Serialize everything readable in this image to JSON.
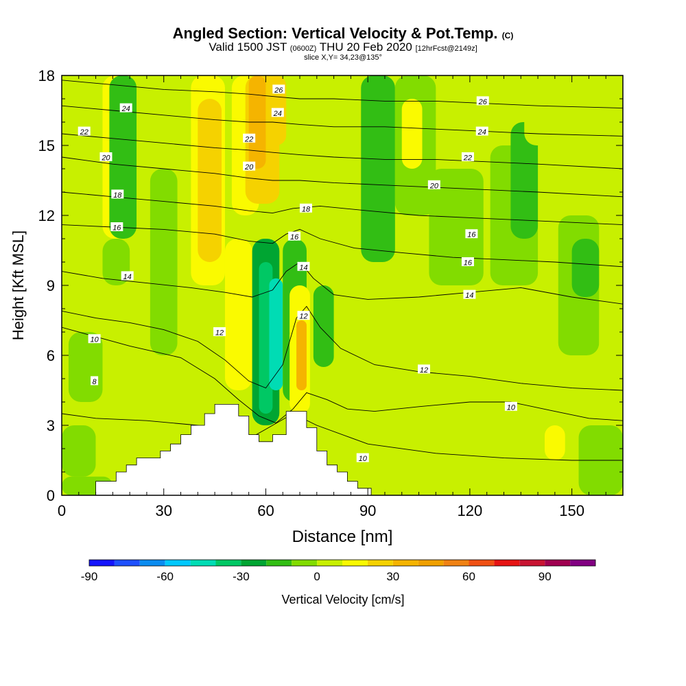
{
  "header": {
    "title": "Angled Section: Vertical Velocity & Pot.Temp.",
    "title_tag": "(C)",
    "valid_prefix": "Valid 1500 JST",
    "valid_utc": "(0600Z)",
    "valid_date": "THU 20 Feb 2020",
    "forecast": "[12hrFcst@2149z]",
    "slice": "slice X,Y= 34,23@135°"
  },
  "chart_data": {
    "type": "heatmap",
    "title": "Angled Section: Vertical Velocity & Pot.Temp.",
    "xlabel": "Distance [nm]",
    "ylabel": "Height [Kft MSL]",
    "xlim": [
      0,
      165
    ],
    "ylim": [
      0,
      18
    ],
    "x_ticks": [
      0,
      30,
      60,
      90,
      120,
      150
    ],
    "y_ticks": [
      0,
      3,
      6,
      9,
      12,
      15,
      18
    ],
    "colorbar": {
      "label": "Vertical Velocity [cm/s]",
      "min": -90,
      "max": 110,
      "step": 10,
      "tick_labels": [
        -90,
        -60,
        -30,
        0,
        30,
        60,
        90
      ],
      "colors": [
        "#1414ff",
        "#1e50ff",
        "#0a8cf0",
        "#00c8ff",
        "#00dcb4",
        "#00c864",
        "#00a532",
        "#32be14",
        "#82dc00",
        "#c8f000",
        "#fafa00",
        "#f5d200",
        "#f5b400",
        "#f0a000",
        "#f08214",
        "#f05014",
        "#e61414",
        "#c81432",
        "#a00050",
        "#820082"
      ]
    },
    "velocity_cells": [
      {
        "x": [
          0,
          15
        ],
        "y": [
          0,
          0.8
        ],
        "w": -8
      },
      {
        "x": [
          0,
          10
        ],
        "y": [
          0.8,
          3
        ],
        "w": -5
      },
      {
        "x": [
          10,
          28
        ],
        "y": [
          0.8,
          4.5
        ],
        "w": 3
      },
      {
        "x": [
          0,
          12
        ],
        "y": [
          3,
          9
        ],
        "w": 4
      },
      {
        "x": [
          2,
          12
        ],
        "y": [
          4,
          7
        ],
        "w": -6
      },
      {
        "x": [
          0,
          12
        ],
        "y": [
          9,
          18
        ],
        "w": 5
      },
      {
        "x": [
          12,
          22
        ],
        "y": [
          11,
          18
        ],
        "w": 12
      },
      {
        "x": [
          14,
          22
        ],
        "y": [
          11,
          18
        ],
        "w": -12
      },
      {
        "x": [
          12,
          20
        ],
        "y": [
          9,
          11
        ],
        "w": -5
      },
      {
        "x": [
          22,
          34
        ],
        "y": [
          4.5,
          12
        ],
        "w": 6
      },
      {
        "x": [
          26,
          34
        ],
        "y": [
          6,
          14
        ],
        "w": -6
      },
      {
        "x": [
          34,
          46
        ],
        "y": [
          5,
          9
        ],
        "w": 6
      },
      {
        "x": [
          38,
          48
        ],
        "y": [
          9,
          18
        ],
        "w": 18
      },
      {
        "x": [
          40,
          47
        ],
        "y": [
          10,
          17
        ],
        "w": 28
      },
      {
        "x": [
          48,
          56
        ],
        "y": [
          4.5,
          11
        ],
        "w": 10
      },
      {
        "x": [
          50,
          58
        ],
        "y": [
          12,
          18
        ],
        "w": 14
      },
      {
        "x": [
          54,
          64
        ],
        "y": [
          12.5,
          18
        ],
        "w": 22
      },
      {
        "x": [
          55,
          60
        ],
        "y": [
          14,
          18
        ],
        "w": 30
      },
      {
        "x": [
          60,
          66
        ],
        "y": [
          15,
          18
        ],
        "w": 26
      },
      {
        "x": [
          56,
          64
        ],
        "y": [
          3,
          11
        ],
        "w": -22
      },
      {
        "x": [
          58,
          62
        ],
        "y": [
          3.5,
          10
        ],
        "w": -35
      },
      {
        "x": [
          61,
          65
        ],
        "y": [
          4.5,
          9.3
        ],
        "w": -48
      },
      {
        "x": [
          65,
          72
        ],
        "y": [
          4,
          11
        ],
        "w": -12
      },
      {
        "x": [
          67,
          73
        ],
        "y": [
          3.5,
          9
        ],
        "w": 14
      },
      {
        "x": [
          69,
          72
        ],
        "y": [
          4.5,
          7.5
        ],
        "w": 34
      },
      {
        "x": [
          74,
          80
        ],
        "y": [
          5.5,
          9
        ],
        "w": -14
      },
      {
        "x": [
          76,
          86
        ],
        "y": [
          9,
          12
        ],
        "w": 4
      },
      {
        "x": [
          80,
          92
        ],
        "y": [
          0.3,
          4.5
        ],
        "w": 2
      },
      {
        "x": [
          84,
          92
        ],
        "y": [
          12,
          18
        ],
        "w": 6
      },
      {
        "x": [
          88,
          98
        ],
        "y": [
          10,
          18
        ],
        "w": -14
      },
      {
        "x": [
          86,
          100
        ],
        "y": [
          4.5,
          10
        ],
        "w": 3
      },
      {
        "x": [
          98,
          110
        ],
        "y": [
          12,
          18
        ],
        "w": -6
      },
      {
        "x": [
          100,
          106
        ],
        "y": [
          14,
          17
        ],
        "w": 14
      },
      {
        "x": [
          100,
          108
        ],
        "y": [
          3,
          12
        ],
        "w": 6
      },
      {
        "x": [
          106,
          120
        ],
        "y": [
          0.3,
          9
        ],
        "w": 4
      },
      {
        "x": [
          108,
          124
        ],
        "y": [
          9,
          14
        ],
        "w": -4
      },
      {
        "x": [
          114,
          126
        ],
        "y": [
          14,
          18
        ],
        "w": 3
      },
      {
        "x": [
          120,
          136
        ],
        "y": [
          4,
          9
        ],
        "w": 5
      },
      {
        "x": [
          126,
          140
        ],
        "y": [
          9,
          15
        ],
        "w": -5
      },
      {
        "x": [
          132,
          140
        ],
        "y": [
          11,
          16
        ],
        "w": -12
      },
      {
        "x": [
          136,
          148
        ],
        "y": [
          15,
          18
        ],
        "w": 4
      },
      {
        "x": [
          140,
          152
        ],
        "y": [
          1,
          4
        ],
        "w": 8
      },
      {
        "x": [
          142,
          148
        ],
        "y": [
          1.5,
          3
        ],
        "w": 14
      },
      {
        "x": [
          146,
          158
        ],
        "y": [
          6,
          12
        ],
        "w": -8
      },
      {
        "x": [
          150,
          158
        ],
        "y": [
          8.5,
          11
        ],
        "w": -14
      },
      {
        "x": [
          156,
          165
        ],
        "y": [
          12,
          18
        ],
        "w": 3
      },
      {
        "x": [
          158,
          165
        ],
        "y": [
          6,
          8
        ],
        "w": 6
      },
      {
        "x": [
          152,
          165
        ],
        "y": [
          0,
          3
        ],
        "w": -5
      }
    ],
    "terrain": {
      "x": [
        0,
        10,
        10,
        16,
        16,
        19,
        19,
        22,
        22,
        29,
        29,
        32,
        32,
        35,
        35,
        38,
        38,
        42,
        42,
        45,
        45,
        52,
        52,
        55,
        55,
        58,
        58,
        62,
        62,
        66,
        66,
        72,
        72,
        75,
        75,
        78,
        78,
        81,
        81,
        84,
        84,
        87,
        87,
        91,
        91
      ],
      "y": [
        0,
        0,
        0.6,
        0.6,
        1.0,
        1.0,
        1.3,
        1.3,
        1.6,
        1.6,
        1.9,
        1.9,
        2.2,
        2.2,
        2.6,
        2.6,
        3.0,
        3.0,
        3.5,
        3.5,
        3.9,
        3.9,
        3.4,
        3.4,
        2.6,
        2.6,
        2.3,
        2.3,
        2.6,
        2.6,
        3.6,
        3.6,
        2.9,
        2.9,
        1.9,
        1.9,
        1.3,
        1.3,
        1.0,
        1.0,
        0.6,
        0.6,
        0.3,
        0.3,
        0
      ]
    },
    "isentropes": [
      {
        "value": 8,
        "x": [
          0,
          10,
          25,
          40,
          50,
          56,
          62,
          68,
          75,
          90,
          110,
          130,
          150,
          165
        ],
        "y": [
          3.5,
          3.3,
          3.2,
          3.0,
          2.7,
          2.5,
          3.0,
          3.5,
          3.0,
          2.2,
          1.8,
          1.6,
          1.5,
          1.5
        ]
      },
      {
        "value": 10,
        "x": [
          0,
          10,
          20,
          35,
          45,
          52,
          58,
          63,
          68,
          72,
          78,
          84,
          92,
          105,
          120,
          132,
          145,
          155,
          165
        ],
        "y": [
          7.2,
          6.8,
          6.4,
          5.9,
          5.0,
          4.1,
          3.4,
          3.1,
          3.7,
          4.4,
          4.1,
          3.7,
          3.6,
          3.8,
          4.0,
          4.0,
          3.6,
          3.3,
          3.2
        ]
      },
      {
        "value": 12,
        "x": [
          0,
          10,
          20,
          30,
          40,
          48,
          55,
          60,
          65,
          69,
          72,
          76,
          82,
          92,
          105,
          120,
          135,
          150,
          165
        ],
        "y": [
          7.9,
          7.6,
          7.4,
          7.1,
          6.6,
          5.8,
          4.9,
          4.6,
          5.6,
          7.6,
          8.1,
          7.2,
          6.3,
          5.6,
          5.3,
          5.1,
          4.8,
          4.6,
          4.5
        ]
      },
      {
        "value": 14,
        "x": [
          0,
          12,
          25,
          38,
          48,
          56,
          62,
          66,
          70,
          74,
          80,
          90,
          105,
          120,
          135,
          150,
          165
        ],
        "y": [
          9.6,
          9.3,
          9.1,
          8.9,
          8.7,
          8.5,
          8.8,
          9.6,
          10.0,
          9.3,
          8.6,
          8.4,
          8.5,
          8.7,
          8.9,
          8.5,
          8.2
        ]
      },
      {
        "value": 16,
        "x": [
          0,
          15,
          30,
          45,
          55,
          62,
          66,
          70,
          76,
          86,
          100,
          115,
          130,
          145,
          165
        ],
        "y": [
          11.6,
          11.5,
          11.4,
          11.2,
          10.9,
          10.8,
          11.2,
          11.4,
          11.0,
          10.6,
          10.4,
          10.2,
          10.1,
          10.0,
          9.8
        ]
      },
      {
        "value": 18,
        "x": [
          0,
          15,
          30,
          45,
          55,
          62,
          68,
          76,
          90,
          105,
          120,
          135,
          150,
          165
        ],
        "y": [
          13.0,
          12.8,
          12.6,
          12.4,
          12.2,
          12.1,
          12.3,
          12.4,
          12.2,
          12.0,
          11.9,
          11.8,
          11.7,
          11.6
        ]
      },
      {
        "value": 20,
        "x": [
          0,
          15,
          30,
          45,
          55,
          62,
          70,
          80,
          95,
          110,
          125,
          140,
          165
        ],
        "y": [
          14.5,
          14.2,
          14.0,
          13.8,
          13.6,
          13.5,
          13.5,
          13.4,
          13.3,
          13.2,
          13.1,
          13.0,
          12.8
        ]
      },
      {
        "value": 22,
        "x": [
          0,
          15,
          30,
          45,
          55,
          62,
          70,
          80,
          95,
          110,
          125,
          140,
          165
        ],
        "y": [
          15.5,
          15.3,
          15.1,
          14.9,
          14.8,
          14.7,
          14.6,
          14.5,
          14.4,
          14.4,
          14.3,
          14.2,
          14.0
        ]
      },
      {
        "value": 24,
        "x": [
          0,
          15,
          30,
          45,
          55,
          62,
          70,
          80,
          95,
          110,
          125,
          140,
          165
        ],
        "y": [
          16.7,
          16.5,
          16.3,
          16.1,
          16.0,
          16.0,
          15.9,
          15.8,
          15.8,
          15.7,
          15.6,
          15.5,
          15.4
        ]
      },
      {
        "value": 26,
        "x": [
          0,
          15,
          30,
          45,
          55,
          62,
          70,
          80,
          95,
          110,
          125,
          140,
          165
        ],
        "y": [
          17.8,
          17.6,
          17.4,
          17.3,
          17.2,
          17.1,
          17.0,
          17.0,
          16.9,
          16.9,
          16.8,
          16.7,
          16.6
        ]
      }
    ],
    "isentrope_labels": [
      {
        "text": "8",
        "x": 9.6,
        "y": 4.9
      },
      {
        "text": "10",
        "x": 9.6,
        "y": 6.7
      },
      {
        "text": "10",
        "x": 132.1,
        "y": 3.8
      },
      {
        "text": "10",
        "x": 88.5,
        "y": 1.6
      },
      {
        "text": "12",
        "x": 46.4,
        "y": 7.0
      },
      {
        "text": "12",
        "x": 71.1,
        "y": 7.7
      },
      {
        "text": "12",
        "x": 106.5,
        "y": 5.4
      },
      {
        "text": "14",
        "x": 19.3,
        "y": 9.4
      },
      {
        "text": "14",
        "x": 71.1,
        "y": 9.8
      },
      {
        "text": "14",
        "x": 119.9,
        "y": 8.6
      },
      {
        "text": "16",
        "x": 16.2,
        "y": 11.5
      },
      {
        "text": "16",
        "x": 68.4,
        "y": 11.1
      },
      {
        "text": "16",
        "x": 119.4,
        "y": 10.0
      },
      {
        "text": "16",
        "x": 120.5,
        "y": 11.2
      },
      {
        "text": "18",
        "x": 16.4,
        "y": 12.9
      },
      {
        "text": "18",
        "x": 71.8,
        "y": 12.3
      },
      {
        "text": "20",
        "x": 13.0,
        "y": 14.5
      },
      {
        "text": "20",
        "x": 55.1,
        "y": 14.1
      },
      {
        "text": "20",
        "x": 109.5,
        "y": 13.3
      },
      {
        "text": "22",
        "x": 6.6,
        "y": 15.6
      },
      {
        "text": "22",
        "x": 55.1,
        "y": 15.3
      },
      {
        "text": "22",
        "x": 119.4,
        "y": 14.5
      },
      {
        "text": "24",
        "x": 18.9,
        "y": 16.6
      },
      {
        "text": "24",
        "x": 63.5,
        "y": 16.4
      },
      {
        "text": "24",
        "x": 123.6,
        "y": 15.6
      },
      {
        "text": "26",
        "x": 63.8,
        "y": 17.4
      },
      {
        "text": "26",
        "x": 123.8,
        "y": 16.9
      }
    ]
  }
}
